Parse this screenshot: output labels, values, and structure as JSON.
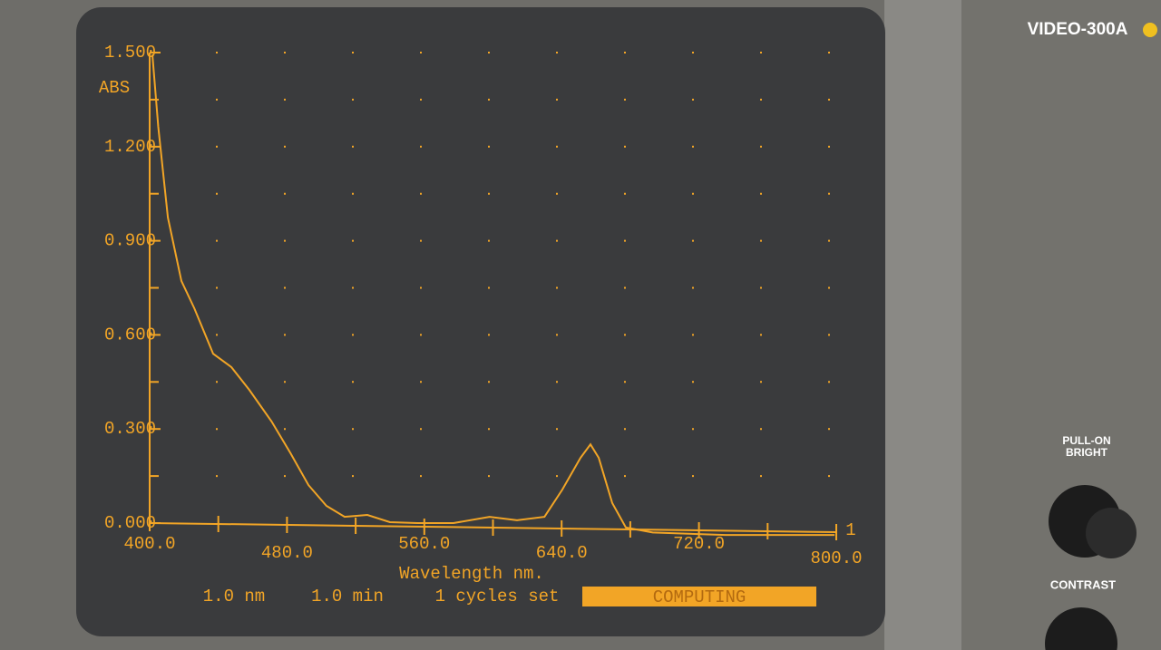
{
  "chart_data": {
    "type": "line",
    "ylabel": "ABS",
    "xlabel": "Wavelength nm.",
    "end_marker": "1",
    "status": [
      "1.0 nm",
      "1.0 min",
      "1 cycles set",
      "COMPUTING"
    ],
    "color": "#f2a526",
    "grid": true,
    "x": [
      401.6,
      405,
      410.6,
      418.5,
      426,
      437,
      447.6,
      458,
      471,
      482,
      492.5,
      503,
      513.6,
      526.8,
      540,
      556,
      577,
      598,
      614,
      630,
      640.4,
      651,
      656.8,
      661.6,
      669.5,
      677.4,
      693,
      735.5,
      799
    ],
    "values": [
      1.494,
      1.263,
      0.974,
      0.772,
      0.685,
      0.54,
      0.497,
      0.425,
      0.324,
      0.223,
      0.121,
      0.055,
      0.02,
      0.026,
      0.003,
      0,
      0,
      0.02,
      0.009,
      0.02,
      0.107,
      0.208,
      0.251,
      0.208,
      0.064,
      -0.014,
      -0.03,
      -0.038,
      -0.038
    ],
    "xlim": [
      400,
      800
    ],
    "xticks": [
      {
        "value": 400,
        "label": "400.0"
      },
      {
        "value": 480,
        "label": "480.0"
      },
      {
        "value": 560,
        "label": "560.0"
      },
      {
        "value": 640,
        "label": "640.0"
      },
      {
        "value": 720,
        "label": "720.0"
      },
      {
        "value": 800,
        "label": "800.0"
      }
    ],
    "ylim": [
      0,
      1.5
    ],
    "yticks": [
      {
        "value": 0,
        "label": "0.000"
      },
      {
        "value": 0.3,
        "label": "0.300"
      },
      {
        "value": 0.6,
        "label": "0.600"
      },
      {
        "value": 0.9,
        "label": "0.900"
      },
      {
        "value": 1.2,
        "label": "1.200"
      },
      {
        "value": 1.5,
        "label": "1.500"
      }
    ]
  },
  "panel": {
    "model": "VIDEO-300A",
    "bright_label": [
      "PULL-ON",
      "BRIGHT"
    ],
    "contrast_label": "CONTRAST"
  }
}
